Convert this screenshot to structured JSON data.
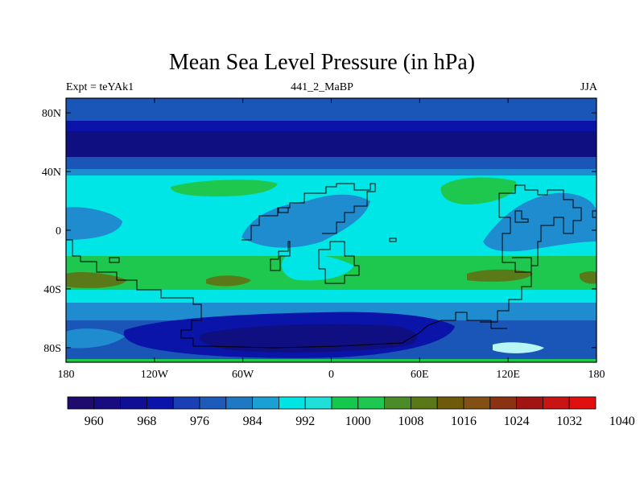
{
  "title": "Mean Sea Level Pressure (in hPa)",
  "left_label": "Expt = teYAk1",
  "center_label": "441_2_MaBP",
  "right_label": "JJA",
  "lon_ticks": [
    {
      "lon": -180,
      "label": "180"
    },
    {
      "lon": -120,
      "label": "120W"
    },
    {
      "lon": -60,
      "label": "60W"
    },
    {
      "lon": 0,
      "label": "0"
    },
    {
      "lon": 60,
      "label": "60E"
    },
    {
      "lon": 120,
      "label": "120E"
    },
    {
      "lon": 180,
      "label": "180"
    }
  ],
  "lat_ticks": [
    {
      "lat": 80,
      "label": "80N"
    },
    {
      "lat": 40,
      "label": "40N"
    },
    {
      "lat": 0,
      "label": "0"
    },
    {
      "lat": -40,
      "label": "40S"
    },
    {
      "lat": -80,
      "label": "80S"
    }
  ],
  "colorbar": {
    "colors": [
      "#1f0a6e",
      "#180d80",
      "#0f0f96",
      "#0a14aa",
      "#1a3fb4",
      "#1e5ab9",
      "#1f78c2",
      "#1aa0d2",
      "#00e4e4",
      "#1ee0d8",
      "#14c84e",
      "#1ec850",
      "#4b8c28",
      "#5a7818",
      "#6e5a0a",
      "#825014",
      "#8c3214",
      "#a01414",
      "#c81414",
      "#e01010"
    ],
    "labels": [
      "960",
      "968",
      "976",
      "984",
      "992",
      "1000",
      "1008",
      "1016",
      "1024",
      "1032",
      "1040"
    ]
  },
  "field_colors": {
    "deep": "#0f0f82",
    "dark": "#0a14a8",
    "mid": "#1a55b8",
    "light": "#1f8ccf",
    "cyan": "#00e6e6",
    "green": "#1ec84e",
    "olive": "#5a7a1a",
    "pale": "#b8f5f5"
  }
}
